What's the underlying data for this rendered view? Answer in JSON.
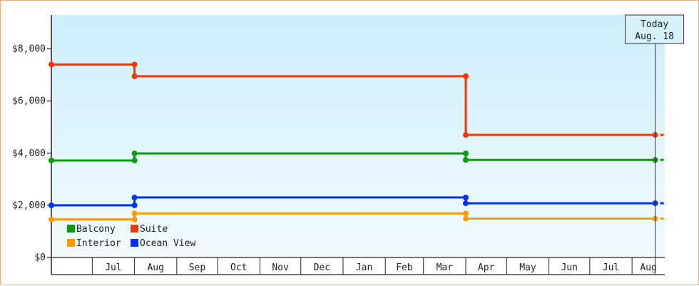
{
  "chart_data": {
    "type": "line",
    "title": "",
    "xlabel": "",
    "ylabel": "",
    "ylim": [
      0,
      9300
    ],
    "yticks": [
      0,
      2000,
      4000,
      6000,
      8000
    ],
    "ytick_labels": [
      "$0",
      "$2,000",
      "$4,000",
      "$6,000",
      "$8,000"
    ],
    "xlim": [
      "2021-06-01",
      "2022-08-25"
    ],
    "month_boundaries": [
      "2021-06-01",
      "2021-07-01",
      "2021-08-01",
      "2021-09-01",
      "2021-10-01",
      "2021-11-01",
      "2021-12-01",
      "2022-01-01",
      "2022-02-01",
      "2022-03-01",
      "2022-04-01",
      "2022-05-01",
      "2022-06-01",
      "2022-07-01",
      "2022-08-01"
    ],
    "month_labels": [
      "Jul",
      "Aug",
      "Sep",
      "Oct",
      "Nov",
      "Dec",
      "Jan",
      "Feb",
      "Mar",
      "Apr",
      "May",
      "Jun",
      "Jul",
      "Aug"
    ],
    "series": [
      {
        "name": "Suite",
        "color": "#ff3300",
        "points": [
          [
            "2021-06-01",
            7400
          ],
          [
            "2021-08-01",
            7400
          ],
          [
            "2021-08-01",
            6950
          ],
          [
            "2022-04-01",
            6950
          ],
          [
            "2022-04-01",
            4700
          ],
          [
            "2022-08-18",
            4700
          ]
        ]
      },
      {
        "name": "Balcony",
        "color": "#119911",
        "points": [
          [
            "2021-06-01",
            3720
          ],
          [
            "2021-08-01",
            3720
          ],
          [
            "2021-08-01",
            3990
          ],
          [
            "2022-04-01",
            3990
          ],
          [
            "2022-04-01",
            3740
          ],
          [
            "2022-08-18",
            3740
          ]
        ]
      },
      {
        "name": "Ocean View",
        "color": "#0033ff",
        "points": [
          [
            "2021-06-01",
            2000
          ],
          [
            "2021-08-01",
            2000
          ],
          [
            "2021-08-01",
            2300
          ],
          [
            "2022-04-01",
            2300
          ],
          [
            "2022-04-01",
            2080
          ],
          [
            "2022-08-18",
            2080
          ]
        ]
      },
      {
        "name": "Interior",
        "color": "#ff9900",
        "points": [
          [
            "2021-06-01",
            1460
          ],
          [
            "2021-08-01",
            1460
          ],
          [
            "2021-08-01",
            1690
          ],
          [
            "2022-04-01",
            1690
          ],
          [
            "2022-04-01",
            1490
          ],
          [
            "2022-08-18",
            1490
          ]
        ]
      }
    ],
    "legend": {
      "placement": "bottom-left",
      "items": [
        {
          "label": "Balcony",
          "color": "#119911"
        },
        {
          "label": "Suite",
          "color": "#ff3300"
        },
        {
          "label": "Interior",
          "color": "#ff9900"
        },
        {
          "label": "Ocean View",
          "color": "#0033ff"
        }
      ]
    },
    "today": {
      "date": "2022-08-18",
      "line1": "Today",
      "line2": "Aug. 18"
    },
    "grid": false,
    "background_gradient": [
      "#cdeefa",
      "#f2fbfe"
    ]
  }
}
